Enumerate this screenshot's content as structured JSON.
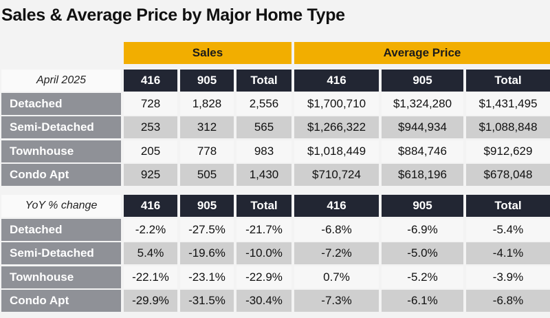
{
  "title": "Sales & Average Price by Major Home Type",
  "groups": [
    "Sales",
    "Average Price"
  ],
  "columns": [
    "416",
    "905",
    "Total",
    "416",
    "905",
    "Total"
  ],
  "chart_data": {
    "type": "table",
    "title": "Sales & Average Price by Major Home Type",
    "sections": [
      {
        "period_label": "April 2025",
        "rows": [
          {
            "label": "Detached",
            "values": [
              "728",
              "1,828",
              "2,556",
              "$1,700,710",
              "$1,324,280",
              "$1,431,495"
            ]
          },
          {
            "label": "Semi-Detached",
            "values": [
              "253",
              "312",
              "565",
              "$1,266,322",
              "$944,934",
              "$1,088,848"
            ]
          },
          {
            "label": "Townhouse",
            "values": [
              "205",
              "778",
              "983",
              "$1,018,449",
              "$884,746",
              "$912,629"
            ]
          },
          {
            "label": "Condo Apt",
            "values": [
              "925",
              "505",
              "1,430",
              "$710,724",
              "$618,196",
              "$678,048"
            ]
          }
        ]
      },
      {
        "period_label": "YoY % change",
        "rows": [
          {
            "label": "Detached",
            "values": [
              "-2.2%",
              "-27.5%",
              "-21.7%",
              "-6.8%",
              "-6.9%",
              "-5.4%"
            ]
          },
          {
            "label": "Semi-Detached",
            "values": [
              "5.4%",
              "-19.6%",
              "-10.0%",
              "-7.2%",
              "-5.0%",
              "-4.1%"
            ]
          },
          {
            "label": "Townhouse",
            "values": [
              "-22.1%",
              "-23.1%",
              "-22.9%",
              "0.7%",
              "-5.2%",
              "-3.9%"
            ]
          },
          {
            "label": "Condo Apt",
            "values": [
              "-29.9%",
              "-31.5%",
              "-30.4%",
              "-7.3%",
              "-6.1%",
              "-6.8%"
            ]
          }
        ]
      }
    ]
  }
}
